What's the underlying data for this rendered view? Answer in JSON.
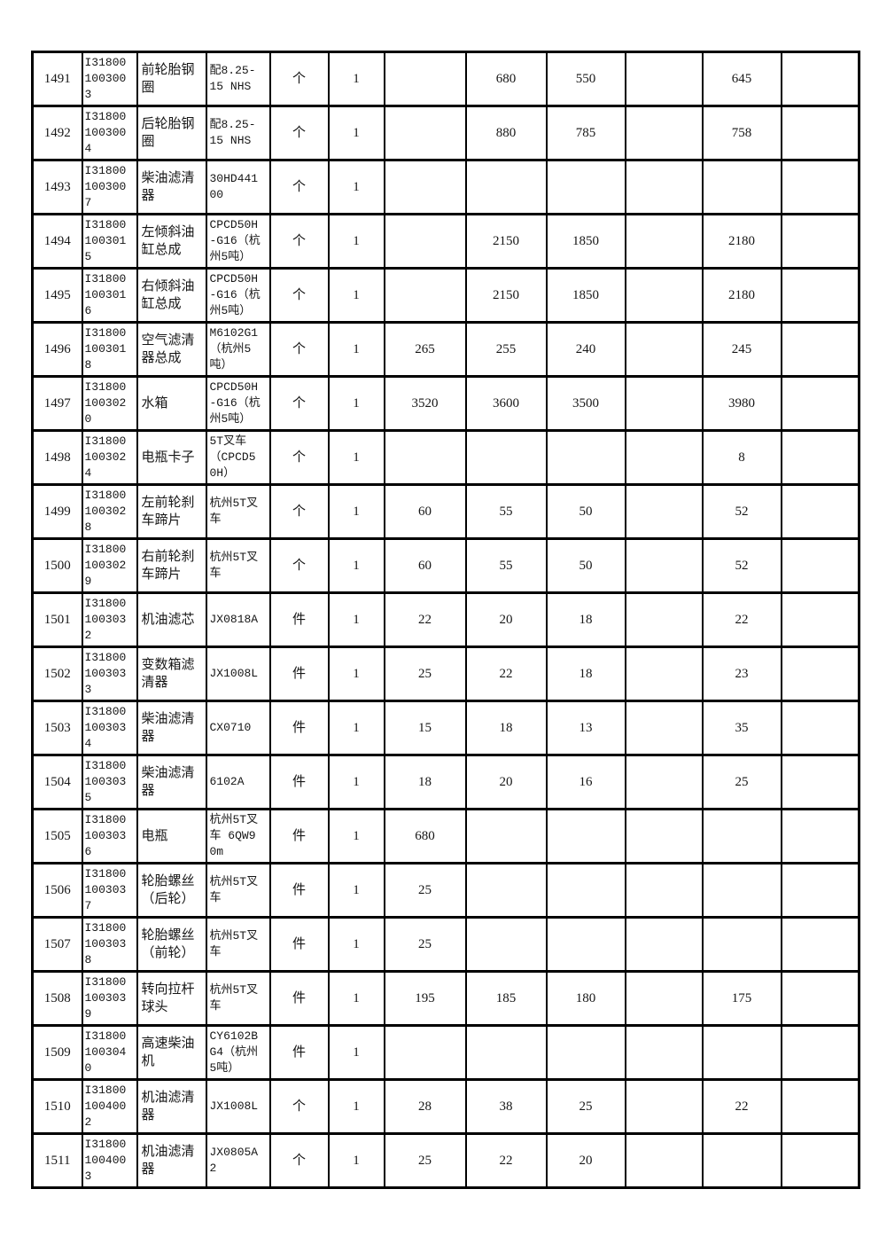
{
  "page": {
    "background_color": "#ffffff",
    "text_color": "#161616",
    "grid_color": "#000000"
  },
  "table": {
    "rows": [
      {
        "serial": "1491",
        "code": "I318001003003",
        "name": "前轮胎钢圈",
        "spec": "配8.25-15 NHS",
        "unit": "个",
        "qty": "1",
        "p1": "",
        "p2": "680",
        "p3": "550",
        "p4": "",
        "p5": "645",
        "p6": ""
      },
      {
        "serial": "1492",
        "code": "I318001003004",
        "name": "后轮胎钢圈",
        "spec": "配8.25-15 NHS",
        "unit": "个",
        "qty": "1",
        "p1": "",
        "p2": "880",
        "p3": "785",
        "p4": "",
        "p5": "758",
        "p6": ""
      },
      {
        "serial": "1493",
        "code": "I318001003007",
        "name": "柴油滤清器",
        "spec": "30HD44100",
        "unit": "个",
        "qty": "1",
        "p1": "",
        "p2": "",
        "p3": "",
        "p4": "",
        "p5": "",
        "p6": ""
      },
      {
        "serial": "1494",
        "code": "I318001003015",
        "name": "左倾斜油缸总成",
        "spec": "CPCD50H-G16（杭州5吨）",
        "unit": "个",
        "qty": "1",
        "p1": "",
        "p2": "2150",
        "p3": "1850",
        "p4": "",
        "p5": "2180",
        "p6": ""
      },
      {
        "serial": "1495",
        "code": "I318001003016",
        "name": "右倾斜油缸总成",
        "spec": "CPCD50H-G16（杭州5吨）",
        "unit": "个",
        "qty": "1",
        "p1": "",
        "p2": "2150",
        "p3": "1850",
        "p4": "",
        "p5": "2180",
        "p6": ""
      },
      {
        "serial": "1496",
        "code": "I318001003018",
        "name": "空气滤清器总成",
        "spec": "M6102G1（杭州5吨）",
        "unit": "个",
        "qty": "1",
        "p1": "265",
        "p2": "255",
        "p3": "240",
        "p4": "",
        "p5": "245",
        "p6": ""
      },
      {
        "serial": "1497",
        "code": "I318001003020",
        "name": "水箱",
        "spec": "CPCD50H-G16（杭州5吨）",
        "unit": "个",
        "qty": "1",
        "p1": "3520",
        "p2": "3600",
        "p3": "3500",
        "p4": "",
        "p5": "3980",
        "p6": ""
      },
      {
        "serial": "1498",
        "code": "I318001003024",
        "name": "电瓶卡子",
        "spec": "5T叉车（CPCD50H）",
        "unit": "个",
        "qty": "1",
        "p1": "",
        "p2": "",
        "p3": "",
        "p4": "",
        "p5": "8",
        "p6": ""
      },
      {
        "serial": "1499",
        "code": "I318001003028",
        "name": "左前轮刹车蹄片",
        "spec": "杭州5T叉车",
        "unit": "个",
        "qty": "1",
        "p1": "60",
        "p2": "55",
        "p3": "50",
        "p4": "",
        "p5": "52",
        "p6": ""
      },
      {
        "serial": "1500",
        "code": "I318001003029",
        "name": "右前轮刹车蹄片",
        "spec": "杭州5T叉车",
        "unit": "个",
        "qty": "1",
        "p1": "60",
        "p2": "55",
        "p3": "50",
        "p4": "",
        "p5": "52",
        "p6": ""
      },
      {
        "serial": "1501",
        "code": "I318001003032",
        "name": "机油滤芯",
        "spec": "JX0818A",
        "unit": "件",
        "qty": "1",
        "p1": "22",
        "p2": "20",
        "p3": "18",
        "p4": "",
        "p5": "22",
        "p6": ""
      },
      {
        "serial": "1502",
        "code": "I318001003033",
        "name": "变数箱滤清器",
        "spec": "JX1008L",
        "unit": "件",
        "qty": "1",
        "p1": "25",
        "p2": "22",
        "p3": "18",
        "p4": "",
        "p5": "23",
        "p6": ""
      },
      {
        "serial": "1503",
        "code": "I318001003034",
        "name": "柴油滤清器",
        "spec": "CX0710",
        "unit": "件",
        "qty": "1",
        "p1": "15",
        "p2": "18",
        "p3": "13",
        "p4": "",
        "p5": "35",
        "p6": ""
      },
      {
        "serial": "1504",
        "code": "I318001003035",
        "name": "柴油滤清器",
        "spec": "6102A",
        "unit": "件",
        "qty": "1",
        "p1": "18",
        "p2": "20",
        "p3": "16",
        "p4": "",
        "p5": "25",
        "p6": ""
      },
      {
        "serial": "1505",
        "code": "I318001003036",
        "name": "电瓶",
        "spec": "杭州5T叉车 6QW90m",
        "unit": "件",
        "qty": "1",
        "p1": "680",
        "p2": "",
        "p3": "",
        "p4": "",
        "p5": "",
        "p6": ""
      },
      {
        "serial": "1506",
        "code": "I318001003037",
        "name": "轮胎螺丝（后轮）",
        "spec": "杭州5T叉车",
        "unit": "件",
        "qty": "1",
        "p1": "25",
        "p2": "",
        "p3": "",
        "p4": "",
        "p5": "",
        "p6": ""
      },
      {
        "serial": "1507",
        "code": "I318001003038",
        "name": "轮胎螺丝（前轮）",
        "spec": "杭州5T叉车",
        "unit": "件",
        "qty": "1",
        "p1": "25",
        "p2": "",
        "p3": "",
        "p4": "",
        "p5": "",
        "p6": ""
      },
      {
        "serial": "1508",
        "code": "I318001003039",
        "name": "转向拉杆球头",
        "spec": "杭州5T叉车",
        "unit": "件",
        "qty": "1",
        "p1": "195",
        "p2": "185",
        "p3": "180",
        "p4": "",
        "p5": "175",
        "p6": ""
      },
      {
        "serial": "1509",
        "code": "I318001003040",
        "name": "高速柴油机",
        "spec": "CY6102BG4（杭州5吨）",
        "unit": "件",
        "qty": "1",
        "p1": "",
        "p2": "",
        "p3": "",
        "p4": "",
        "p5": "",
        "p6": ""
      },
      {
        "serial": "1510",
        "code": "I318001004002",
        "name": "机油滤清器",
        "spec": "JX1008L",
        "unit": "个",
        "qty": "1",
        "p1": "28",
        "p2": "38",
        "p3": "25",
        "p4": "",
        "p5": "22",
        "p6": ""
      },
      {
        "serial": "1511",
        "code": "I318001004003",
        "name": "机油滤清器",
        "spec": "JX0805A2",
        "unit": "个",
        "qty": "1",
        "p1": "25",
        "p2": "22",
        "p3": "20",
        "p4": "",
        "p5": "",
        "p6": ""
      }
    ]
  }
}
